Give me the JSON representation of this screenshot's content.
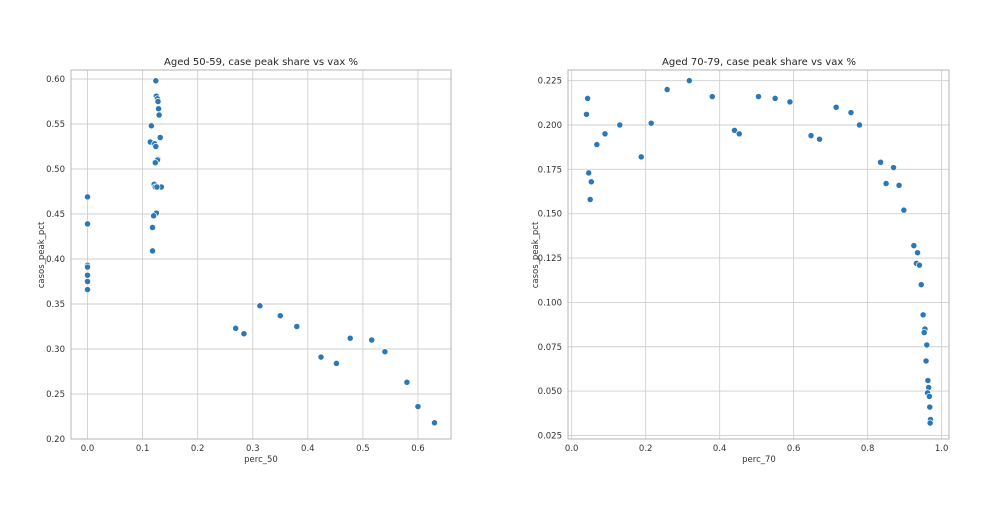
{
  "chart_data": [
    {
      "type": "scatter",
      "title": "Aged 50-59, case peak share vs vax %",
      "xlabel": "perc_50",
      "ylabel": "casos_peak_pct",
      "xlim": [
        -0.03,
        0.66
      ],
      "ylim": [
        0.2,
        0.61
      ],
      "xticks": [
        0.0,
        0.1,
        0.2,
        0.3,
        0.4,
        0.5,
        0.6
      ],
      "xtick_labels": [
        "0.0",
        "0.1",
        "0.2",
        "0.3",
        "0.4",
        "0.5",
        "0.6"
      ],
      "yticks": [
        0.2,
        0.25,
        0.3,
        0.35,
        0.4,
        0.45,
        0.5,
        0.55,
        0.6
      ],
      "ytick_labels": [
        "0.20",
        "0.25",
        "0.30",
        "0.35",
        "0.40",
        "0.45",
        "0.50",
        "0.55",
        "0.60"
      ],
      "grid": true,
      "color": "#2a78b5",
      "x": [
        0.0,
        0.0,
        0.0,
        0.0,
        0.0,
        0.0,
        0.0,
        0.124,
        0.125,
        0.127,
        0.128,
        0.129,
        0.13,
        0.116,
        0.132,
        0.114,
        0.122,
        0.124,
        0.128,
        0.127,
        0.123,
        0.121,
        0.123,
        0.134,
        0.126,
        0.125,
        0.12,
        0.118,
        0.118,
        0.269,
        0.284,
        0.313,
        0.35,
        0.38,
        0.424,
        0.452,
        0.477,
        0.516,
        0.54,
        0.58,
        0.6,
        0.63
      ],
      "y": [
        0.469,
        0.439,
        0.393,
        0.391,
        0.382,
        0.375,
        0.366,
        0.598,
        0.581,
        0.578,
        0.575,
        0.567,
        0.56,
        0.548,
        0.535,
        0.53,
        0.528,
        0.525,
        0.511,
        0.51,
        0.507,
        0.483,
        0.48,
        0.48,
        0.48,
        0.451,
        0.448,
        0.435,
        0.409,
        0.323,
        0.317,
        0.348,
        0.337,
        0.325,
        0.291,
        0.284,
        0.312,
        0.31,
        0.297,
        0.263,
        0.236,
        0.218
      ]
    },
    {
      "type": "scatter",
      "title": "Aged 70-79, case peak share vs vax %",
      "xlabel": "perc_70",
      "ylabel": "casos_peak_pct",
      "xlim": [
        -0.01,
        1.02
      ],
      "ylim": [
        0.023,
        0.231
      ],
      "xticks": [
        0.0,
        0.2,
        0.4,
        0.6,
        0.8,
        1.0
      ],
      "xtick_labels": [
        "0.0",
        "0.2",
        "0.4",
        "0.6",
        "0.8",
        "1.0"
      ],
      "yticks": [
        0.025,
        0.05,
        0.075,
        0.1,
        0.125,
        0.15,
        0.175,
        0.2,
        0.225
      ],
      "ytick_labels": [
        "0.025",
        "0.050",
        "0.075",
        "0.100",
        "0.125",
        "0.150",
        "0.175",
        "0.200",
        "0.225"
      ],
      "grid": true,
      "color": "#2a78b5",
      "x": [
        0.043,
        0.04,
        0.046,
        0.053,
        0.05,
        0.068,
        0.09,
        0.13,
        0.188,
        0.215,
        0.258,
        0.318,
        0.38,
        0.44,
        0.453,
        0.505,
        0.55,
        0.59,
        0.647,
        0.67,
        0.715,
        0.755,
        0.778,
        0.835,
        0.85,
        0.87,
        0.885,
        0.898,
        0.925,
        0.932,
        0.935,
        0.94,
        0.945,
        0.95,
        0.955,
        0.953,
        0.96,
        0.958,
        0.963,
        0.965,
        0.962,
        0.967,
        0.968,
        0.97,
        0.969
      ],
      "y": [
        0.215,
        0.206,
        0.173,
        0.168,
        0.158,
        0.189,
        0.195,
        0.2,
        0.182,
        0.201,
        0.22,
        0.225,
        0.216,
        0.197,
        0.195,
        0.216,
        0.215,
        0.213,
        0.194,
        0.192,
        0.21,
        0.207,
        0.2,
        0.179,
        0.167,
        0.176,
        0.166,
        0.152,
        0.132,
        0.122,
        0.128,
        0.121,
        0.11,
        0.093,
        0.085,
        0.083,
        0.076,
        0.067,
        0.056,
        0.052,
        0.049,
        0.047,
        0.041,
        0.034,
        0.032
      ]
    }
  ]
}
